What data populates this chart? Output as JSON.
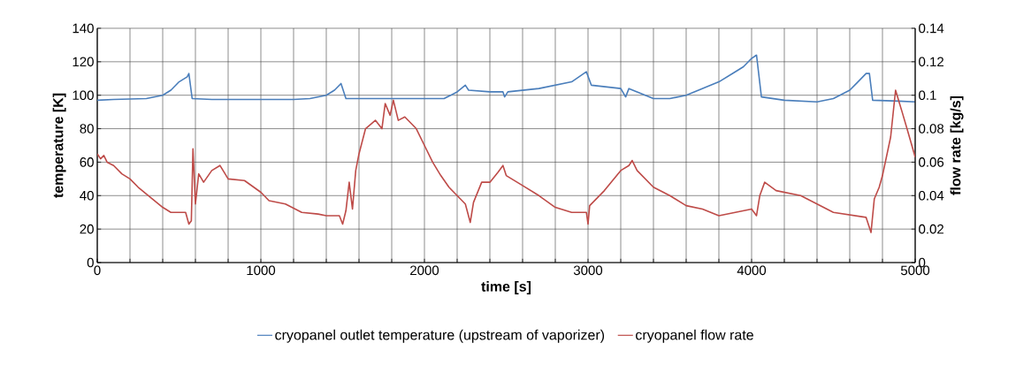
{
  "chart_data": {
    "type": "line",
    "xlabel": "time [s]",
    "ylabel": "temperature [K]",
    "y2label": "flow rate [kg/s]",
    "xlim": [
      0,
      5000
    ],
    "ylim": [
      0,
      140
    ],
    "y2lim": [
      0,
      0.14
    ],
    "xticks": [
      0,
      {
        "value": 200,
        "label": null
      },
      {
        "value": 400,
        "label": null
      },
      {
        "value": 600,
        "label": null
      },
      {
        "value": 800,
        "label": null
      },
      1000,
      {
        "value": 1200,
        "label": null
      },
      {
        "value": 1400,
        "label": null
      },
      {
        "value": 1600,
        "label": null
      },
      {
        "value": 1800,
        "label": null
      },
      2000,
      {
        "value": 2200,
        "label": null
      },
      {
        "value": 2400,
        "label": null
      },
      {
        "value": 2600,
        "label": null
      },
      {
        "value": 2800,
        "label": null
      },
      3000,
      {
        "value": 3200,
        "label": null
      },
      {
        "value": 3400,
        "label": null
      },
      {
        "value": 3600,
        "label": null
      },
      {
        "value": 3800,
        "label": null
      },
      4000,
      {
        "value": 4200,
        "label": null
      },
      {
        "value": 4400,
        "label": null
      },
      {
        "value": 4600,
        "label": null
      },
      {
        "value": 4800,
        "label": null
      },
      5000
    ],
    "yticks": [
      0,
      20,
      40,
      60,
      80,
      100,
      120,
      140
    ],
    "y2ticks": [
      0,
      0.02,
      0.04,
      0.06,
      0.08,
      0.1,
      0.12,
      0.14
    ],
    "grid": true,
    "legend": "bottom",
    "line_style": "solid",
    "series": [
      {
        "name": "cryopanel outlet temperature (upstream of vaporizer)",
        "color": "#4a7ebb",
        "x": [
          0,
          100,
          300,
          400,
          450,
          500,
          550,
          560,
          580,
          700,
          1000,
          1200,
          1300,
          1400,
          1450,
          1490,
          1520,
          1700,
          2000,
          2120,
          2200,
          2250,
          2270,
          2400,
          2480,
          2490,
          2510,
          2700,
          2900,
          2990,
          3020,
          3200,
          3230,
          3250,
          3400,
          3500,
          3600,
          3800,
          3900,
          3950,
          4000,
          4030,
          4060,
          4200,
          4400,
          4500,
          4600,
          4650,
          4700,
          4720,
          4740,
          4900,
          5000
        ],
        "values": [
          97,
          97.5,
          98,
          100,
          103,
          108,
          111,
          113,
          98,
          97.5,
          97.5,
          97.5,
          98,
          100,
          103,
          107,
          98,
          98,
          98,
          98,
          102,
          106,
          103,
          102,
          102,
          99,
          102,
          104,
          108,
          114,
          106,
          104,
          99,
          104,
          98,
          98,
          100,
          108,
          114,
          117,
          122,
          124,
          99,
          97,
          96,
          98,
          103,
          108,
          113,
          113,
          97,
          96.5,
          96
        ]
      },
      {
        "name": "cryopanel flow rate",
        "color": "#be4b48",
        "axis": "y2",
        "x": [
          0,
          20,
          40,
          60,
          100,
          150,
          200,
          250,
          300,
          350,
          400,
          450,
          500,
          540,
          560,
          575,
          585,
          600,
          620,
          650,
          700,
          750,
          800,
          900,
          1000,
          1050,
          1150,
          1250,
          1350,
          1400,
          1480,
          1500,
          1520,
          1540,
          1560,
          1580,
          1600,
          1640,
          1700,
          1740,
          1760,
          1790,
          1810,
          1840,
          1880,
          1950,
          2000,
          2050,
          2100,
          2150,
          2200,
          2250,
          2280,
          2300,
          2350,
          2400,
          2450,
          2480,
          2500,
          2600,
          2700,
          2800,
          2900,
          2990,
          3000,
          3010,
          3100,
          3200,
          3250,
          3270,
          3300,
          3350,
          3400,
          3500,
          3600,
          3700,
          3800,
          3900,
          4000,
          4030,
          4050,
          4080,
          4150,
          4300,
          4400,
          4500,
          4700,
          4730,
          4750,
          4780,
          4800,
          4850,
          4880,
          4920,
          4950,
          5000
        ],
        "values": [
          0.065,
          0.062,
          0.064,
          0.06,
          0.058,
          0.053,
          0.05,
          0.045,
          0.041,
          0.037,
          0.033,
          0.03,
          0.03,
          0.03,
          0.023,
          0.025,
          0.068,
          0.035,
          0.053,
          0.048,
          0.055,
          0.058,
          0.05,
          0.049,
          0.042,
          0.037,
          0.035,
          0.03,
          0.029,
          0.028,
          0.028,
          0.023,
          0.031,
          0.048,
          0.032,
          0.055,
          0.065,
          0.08,
          0.085,
          0.08,
          0.095,
          0.088,
          0.097,
          0.085,
          0.087,
          0.08,
          0.07,
          0.06,
          0.052,
          0.045,
          0.04,
          0.035,
          0.024,
          0.036,
          0.048,
          0.048,
          0.054,
          0.058,
          0.052,
          0.046,
          0.04,
          0.033,
          0.03,
          0.03,
          0.023,
          0.034,
          0.043,
          0.055,
          0.058,
          0.061,
          0.055,
          0.05,
          0.045,
          0.04,
          0.034,
          0.032,
          0.028,
          0.03,
          0.032,
          0.028,
          0.04,
          0.048,
          0.043,
          0.04,
          0.035,
          0.03,
          0.027,
          0.018,
          0.038,
          0.045,
          0.052,
          0.075,
          0.103,
          0.09,
          0.08,
          0.063
        ]
      }
    ]
  }
}
